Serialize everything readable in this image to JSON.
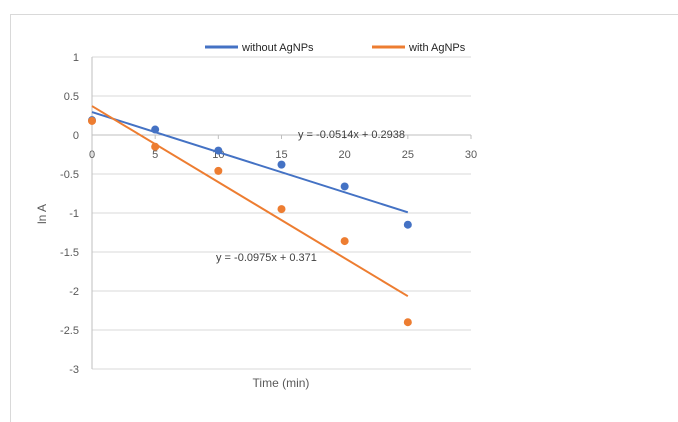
{
  "chart_data": {
    "type": "scatter",
    "xlabel": "Time (min)",
    "ylabel": "ln A",
    "xlim": [
      0,
      30
    ],
    "ylim": [
      -3,
      1
    ],
    "x_ticks": [
      "0",
      "5",
      "10",
      "15",
      "20",
      "25",
      "30"
    ],
    "y_ticks": [
      "1",
      "0.5",
      "0",
      "-0.5",
      "-1",
      "-1.5",
      "-2",
      "-2.5",
      "-3"
    ],
    "grid": "horizontal",
    "legend_position": "top",
    "series": [
      {
        "name": "without AgNPs",
        "color": "#4472c4",
        "x": [
          0,
          5,
          10,
          15,
          20,
          25
        ],
        "y": [
          0.19,
          0.07,
          -0.2,
          -0.38,
          -0.66,
          -1.15
        ],
        "trendline": {
          "slope": -0.0514,
          "intercept": 0.2938,
          "x_range": [
            0,
            25
          ],
          "equation": "y = -0.0514x + 0.2938"
        }
      },
      {
        "name": "with AgNPs",
        "color": "#ed7d31",
        "x": [
          0,
          5,
          10,
          15,
          20,
          25
        ],
        "y": [
          0.18,
          -0.15,
          -0.46,
          -0.95,
          -1.36,
          -2.4
        ],
        "trendline": {
          "slope": -0.0975,
          "intercept": 0.371,
          "x_range": [
            0,
            25
          ],
          "equation": "y = -0.0975x + 0.371"
        }
      }
    ]
  }
}
